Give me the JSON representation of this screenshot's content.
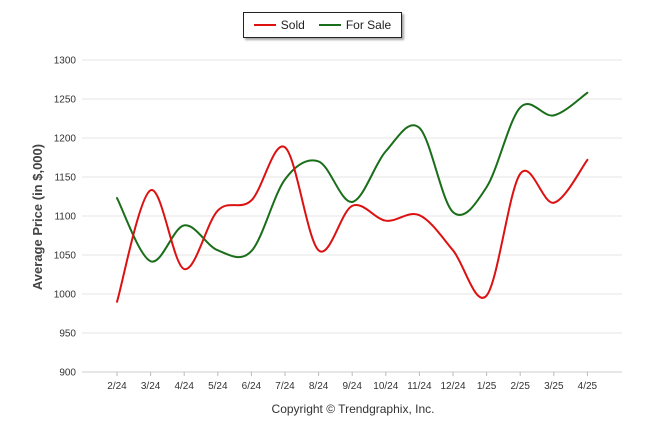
{
  "chart_data": {
    "type": "line",
    "title": "",
    "ylabel": "Average Price (in $,000)",
    "xlabel": "",
    "categories": [
      "2/24",
      "3/24",
      "4/24",
      "5/24",
      "6/24",
      "7/24",
      "8/24",
      "9/24",
      "10/24",
      "11/24",
      "12/24",
      "1/25",
      "2/25",
      "3/25",
      "4/25"
    ],
    "ylim": [
      900,
      1300
    ],
    "yticks": [
      900,
      950,
      1000,
      1050,
      1100,
      1150,
      1200,
      1250,
      1300
    ],
    "grid": true,
    "legend_position": "top-center",
    "series": [
      {
        "name": "Sold",
        "color": "#dd1111",
        "values": [
          990,
          1133,
          1032,
          1107,
          1120,
          1188,
          1056,
          1113,
          1094,
          1101,
          1056,
          998,
          1154,
          1117,
          1172
        ]
      },
      {
        "name": "For Sale",
        "color": "#1a6e1a",
        "values": [
          1123,
          1042,
          1088,
          1056,
          1055,
          1147,
          1170,
          1118,
          1183,
          1213,
          1105,
          1137,
          1239,
          1229,
          1258
        ]
      }
    ],
    "footer": "Copyright © Trendgraphix, Inc."
  }
}
